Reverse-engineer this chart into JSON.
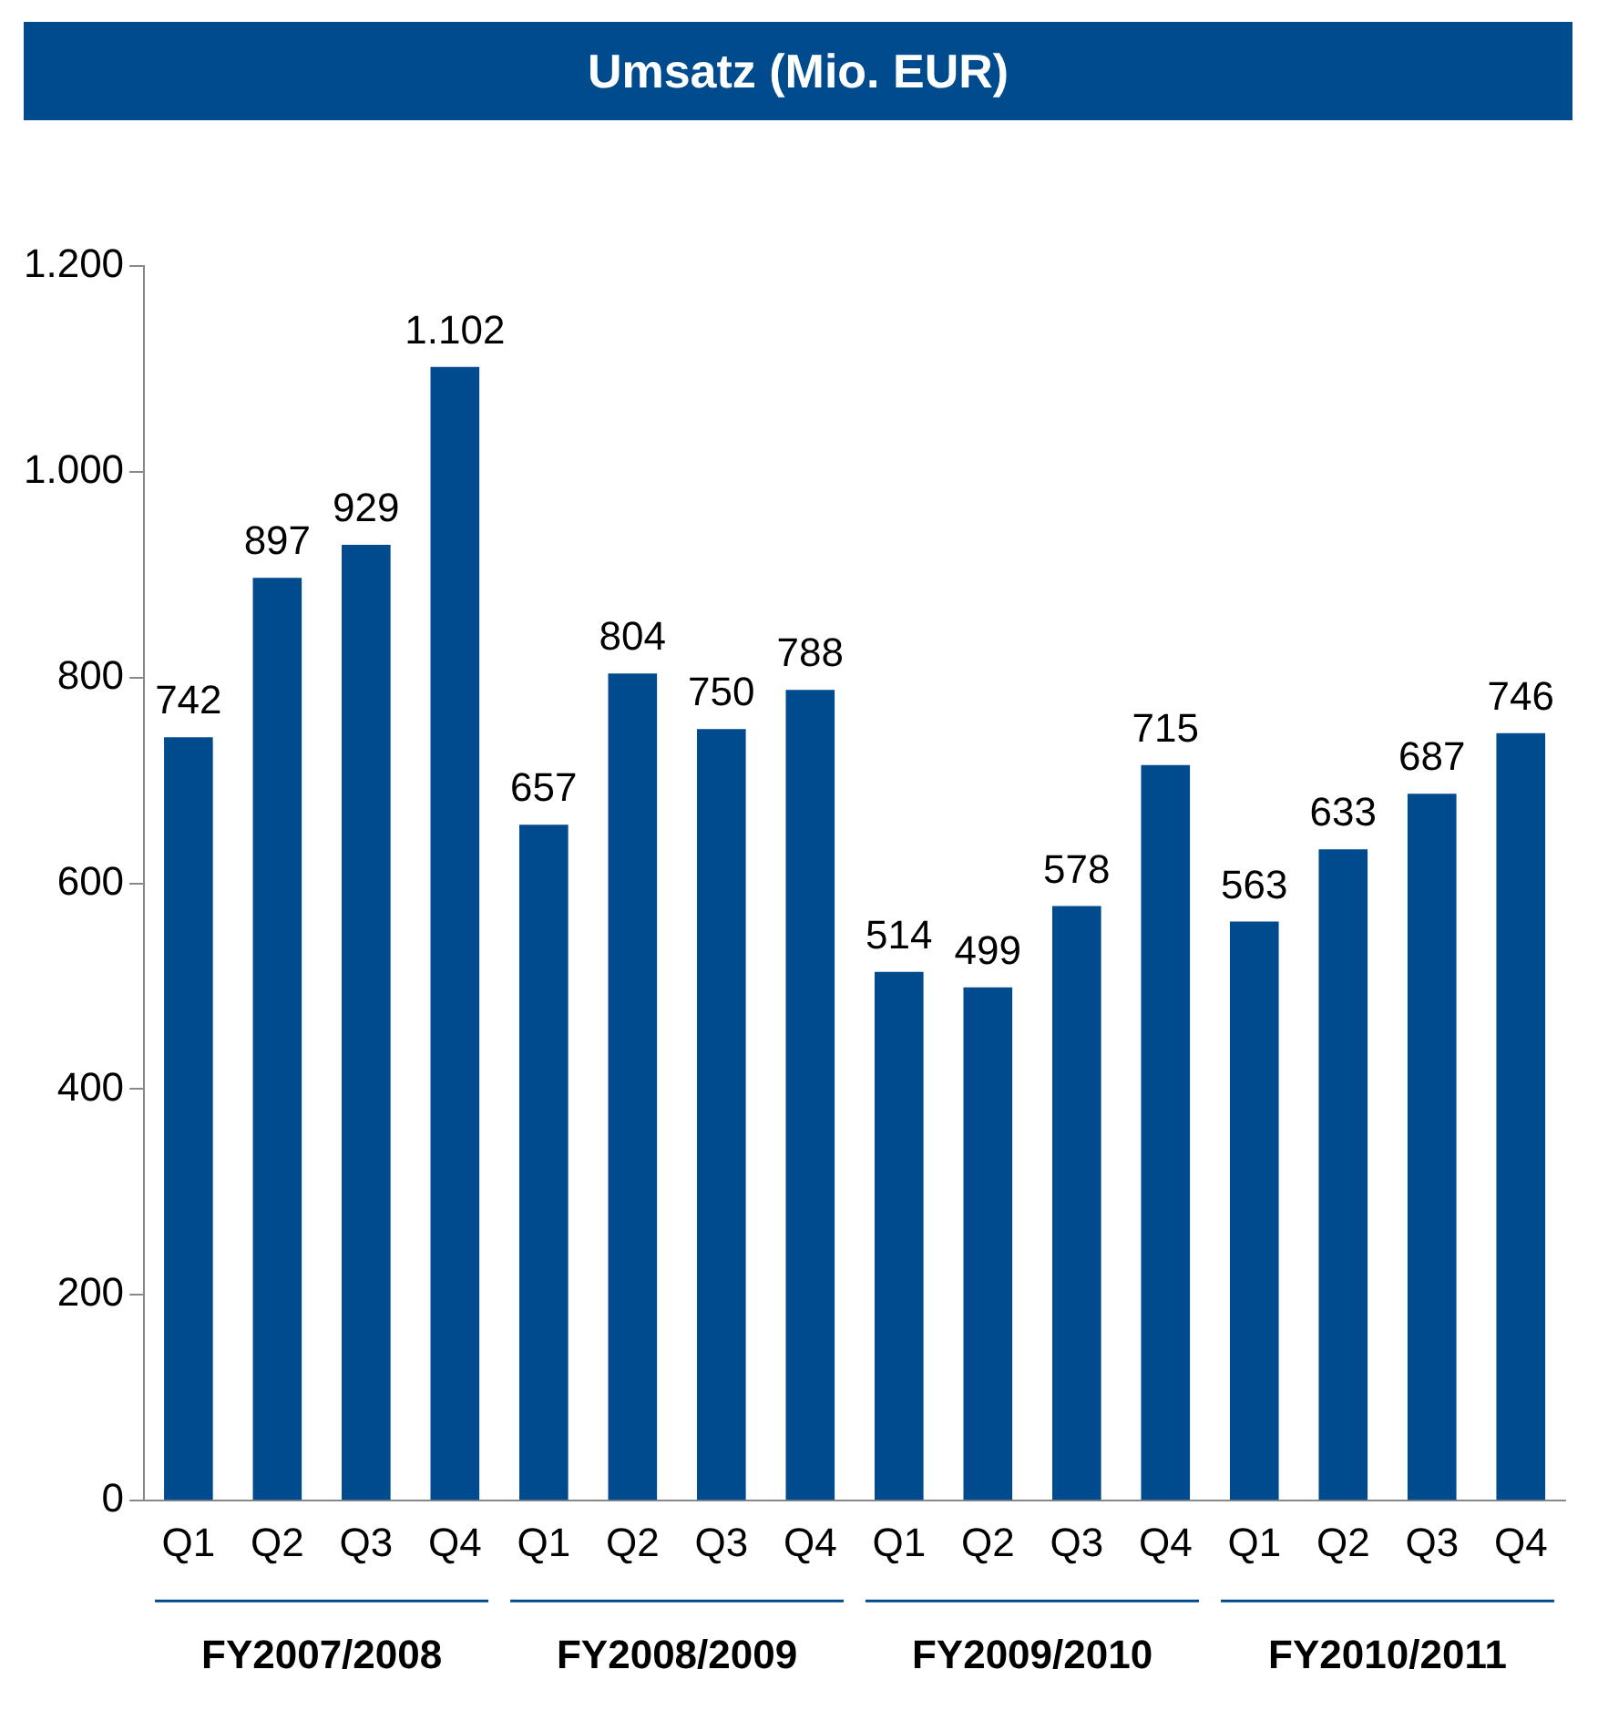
{
  "chart_data": {
    "type": "bar",
    "title": "Umsatz (Mio. EUR)",
    "categories": [
      "Q1",
      "Q2",
      "Q3",
      "Q4",
      "Q1",
      "Q2",
      "Q3",
      "Q4",
      "Q1",
      "Q2",
      "Q3",
      "Q4",
      "Q1",
      "Q2",
      "Q3",
      "Q4"
    ],
    "values": [
      742,
      897,
      929,
      1102,
      657,
      804,
      750,
      788,
      514,
      499,
      578,
      715,
      563,
      633,
      687,
      746
    ],
    "value_labels": [
      "742",
      "897",
      "929",
      "1.102",
      "657",
      "804",
      "750",
      "788",
      "514",
      "499",
      "578",
      "715",
      "563",
      "633",
      "687",
      "746"
    ],
    "color": "#004b8d",
    "ylim": [
      0,
      1200
    ],
    "yticks": [
      0,
      200,
      400,
      600,
      800,
      {
        "value": 1000,
        "label": "1.000"
      },
      {
        "value": 1200,
        "label": "1.200"
      }
    ],
    "grid": false,
    "legend": false,
    "annotations": [
      "FY2007/2008",
      "FY2008/2009",
      "FY2009/2010",
      "FY2010/2011"
    ]
  }
}
